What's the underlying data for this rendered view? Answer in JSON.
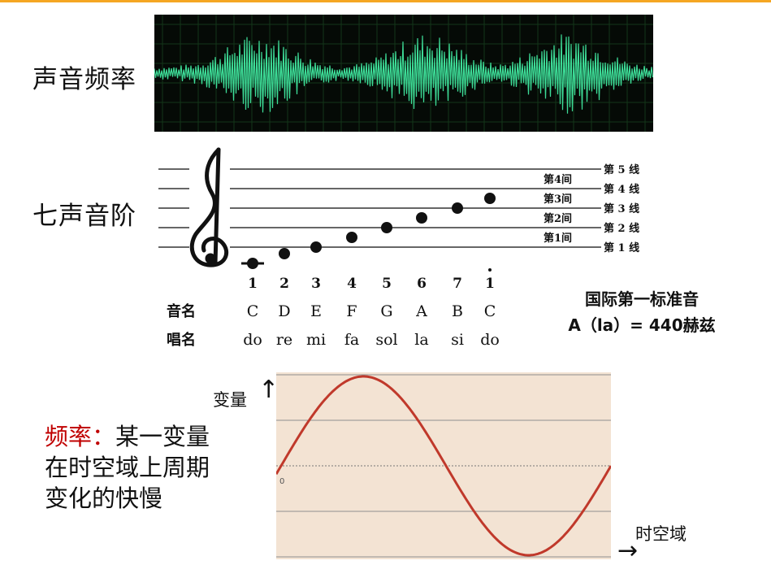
{
  "slide": {
    "accent_color": "#f5a623",
    "heading_sound_frequency": "声音频率",
    "heading_scale": "七声音阶",
    "standard_line1": "国际第一标准音",
    "standard_line2": "A（la）= 440赫兹",
    "axis_variable": "变量",
    "axis_variable_arrow": "↑",
    "axis_domain": "时空域",
    "axis_domain_arrow": "→",
    "sine_zero_label": "0",
    "definition_term": "频率：",
    "definition_text_1": "某一变量",
    "definition_text_2": "在时空域上周期",
    "definition_text_3": "变化的快慢",
    "term_color": "#c00000",
    "wave_color": "#3ddc97",
    "sine_color": "#c0392b"
  },
  "staff": {
    "clef_icon": "treble-clef-icon",
    "line_labels": [
      "第 5 线",
      "第 4 线",
      "第 3 线",
      "第 2 线",
      "第 1 线"
    ],
    "space_labels": [
      "第4间",
      "第3间",
      "第2间",
      "第1间"
    ],
    "row_label_note_name": "音名",
    "row_label_solfege": "唱名",
    "numbers": [
      "1",
      "2",
      "3",
      "4",
      "5",
      "6",
      "7",
      "1"
    ],
    "note_names": [
      "C",
      "D",
      "E",
      "F",
      "G",
      "A",
      "B",
      "C"
    ],
    "solfege": [
      "do",
      "re",
      "mi",
      "fa",
      "sol",
      "la",
      "si",
      "do"
    ]
  }
}
